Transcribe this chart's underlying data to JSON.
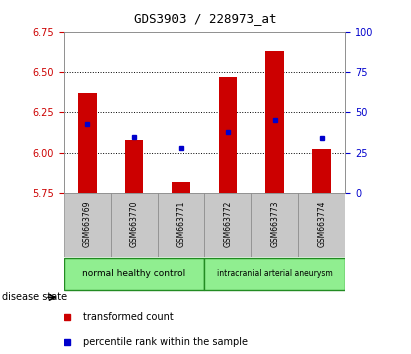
{
  "title": "GDS3903 / 228973_at",
  "samples": [
    "GSM663769",
    "GSM663770",
    "GSM663771",
    "GSM663772",
    "GSM663773",
    "GSM663774"
  ],
  "transformed_count": [
    6.37,
    6.08,
    5.82,
    6.47,
    6.63,
    6.02
  ],
  "percentile_rank": [
    6.18,
    6.1,
    6.03,
    6.13,
    6.2,
    6.09
  ],
  "ylim_left": [
    5.75,
    6.75
  ],
  "ylim_right": [
    0,
    100
  ],
  "yticks_left": [
    5.75,
    6.0,
    6.25,
    6.5,
    6.75
  ],
  "yticks_right": [
    0,
    25,
    50,
    75,
    100
  ],
  "bar_color": "#cc0000",
  "dot_color": "#0000cc",
  "bar_bottom": 5.75,
  "groups": [
    {
      "label": "normal healthy control",
      "span": [
        0,
        3
      ]
    },
    {
      "label": "intracranial arterial aneurysm",
      "span": [
        3,
        6
      ]
    }
  ],
  "group_color": "#90ee90",
  "group_border_color": "#228B22",
  "disease_state_label": "disease state",
  "legend_items": [
    {
      "label": "transformed count",
      "color": "#cc0000"
    },
    {
      "label": "percentile rank within the sample",
      "color": "#0000cc"
    }
  ],
  "sample_bg_color": "#c8c8c8",
  "left_tick_color": "#cc0000",
  "right_tick_color": "#0000cc",
  "grid_lines": [
    6.0,
    6.25,
    6.5
  ]
}
